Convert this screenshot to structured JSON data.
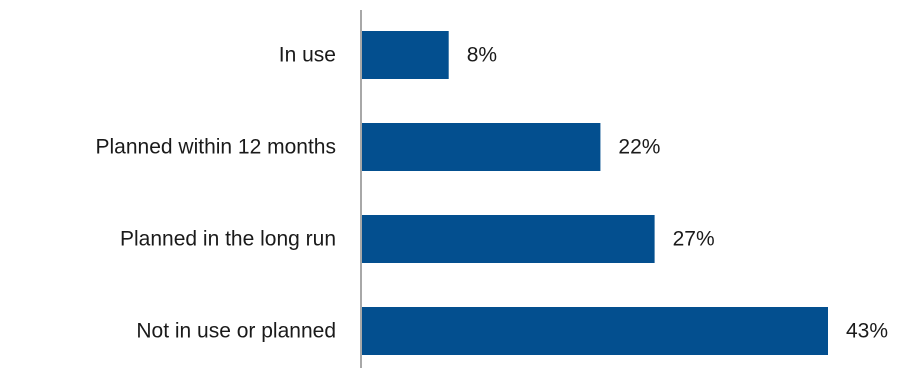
{
  "chart_data": {
    "type": "bar",
    "orientation": "horizontal",
    "categories": [
      "In use",
      "Planned within 12 months",
      "Planned in the long run",
      "Not in use or planned"
    ],
    "values": [
      8,
      22,
      27,
      43
    ],
    "value_labels": [
      "8%",
      "22%",
      "27%",
      "43%"
    ],
    "unit": "%",
    "xlim": [
      0,
      43
    ],
    "grid": false,
    "bar_color": "#034f8f",
    "axis_color": "#8c8c8c",
    "text_color": "#1a1a1a"
  }
}
